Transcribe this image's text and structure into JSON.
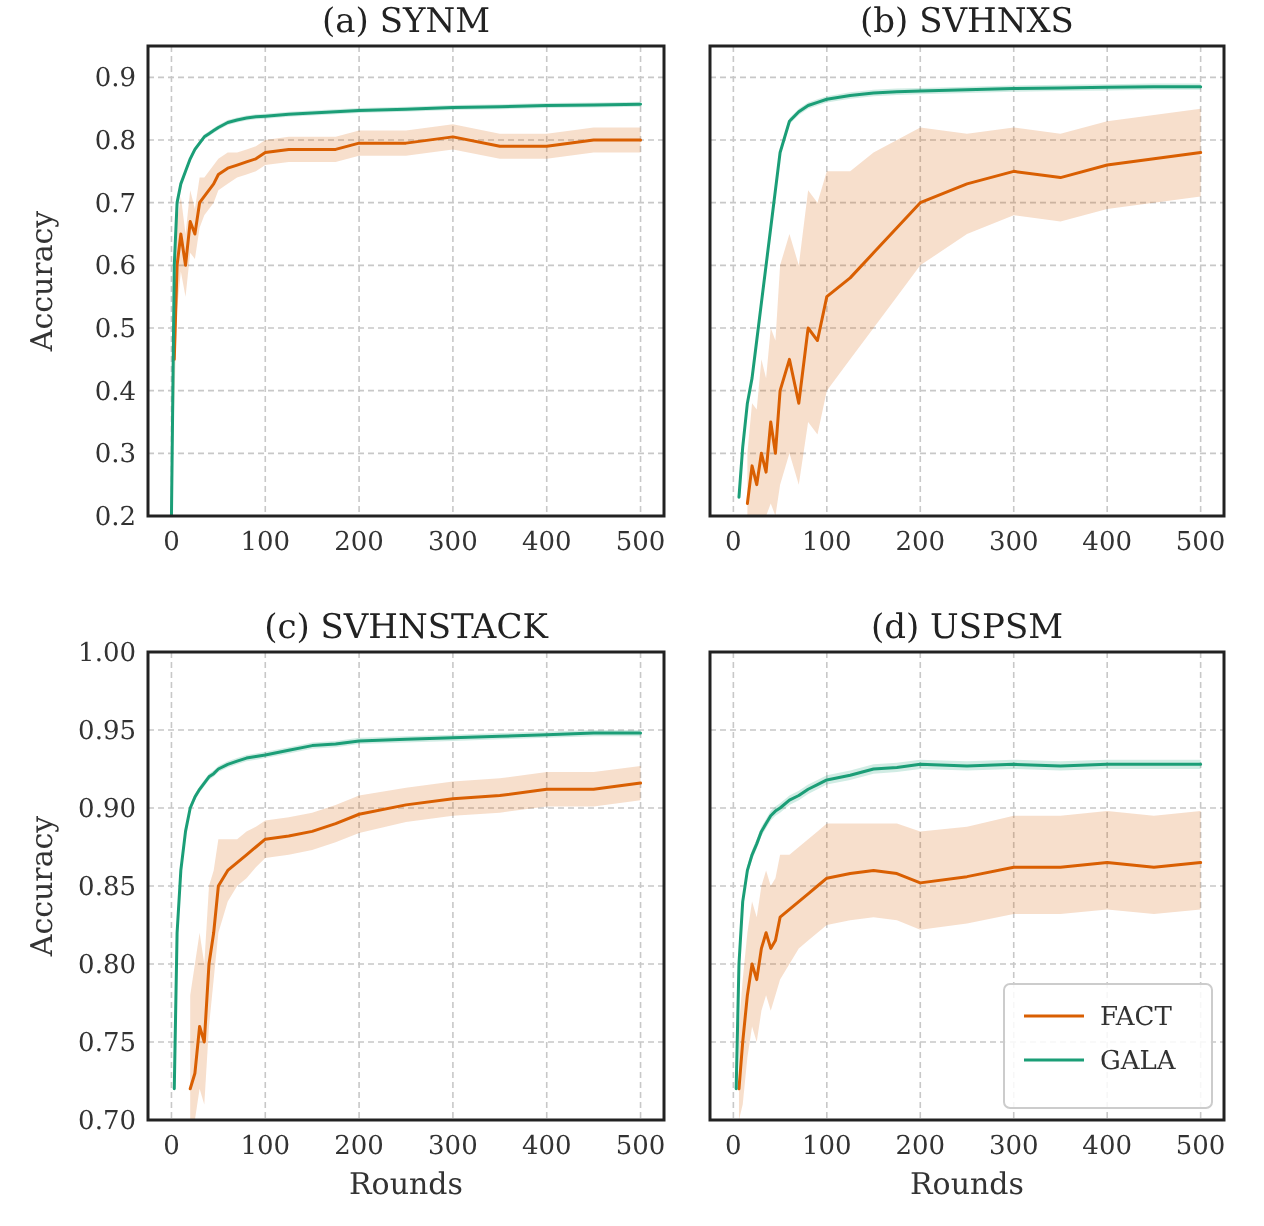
{
  "chart_data": [
    {
      "type": "line",
      "title": "(a) SYNM",
      "ylabel": "Accuracy",
      "grid": true,
      "xlim": [
        -25,
        525
      ],
      "ylim": [
        0.2,
        0.95
      ],
      "xticks": [
        0,
        100,
        200,
        300,
        400,
        500
      ],
      "yticks": [
        0.2,
        0.3,
        0.4,
        0.5,
        0.6,
        0.7,
        0.8,
        0.9
      ],
      "series": [
        {
          "color": "#d95f02",
          "x": [
            0,
            3,
            6,
            10,
            15,
            20,
            25,
            30,
            35,
            40,
            45,
            50,
            60,
            70,
            80,
            90,
            100,
            125,
            150,
            175,
            200,
            250,
            300,
            350,
            400,
            450,
            500
          ],
          "values": [
            null,
            0.45,
            0.6,
            0.65,
            0.6,
            0.67,
            0.65,
            0.7,
            0.71,
            0.72,
            0.73,
            0.745,
            0.755,
            0.76,
            0.765,
            0.77,
            0.78,
            0.785,
            0.785,
            0.785,
            0.795,
            0.795,
            0.805,
            0.79,
            0.79,
            0.8,
            0.8
          ],
          "lower": [
            0.225,
            0.38,
            0.53,
            0.59,
            0.55,
            0.62,
            0.61,
            0.66,
            0.68,
            0.69,
            0.7,
            0.72,
            0.73,
            0.74,
            0.745,
            0.75,
            0.76,
            0.765,
            0.765,
            0.765,
            0.775,
            0.775,
            0.785,
            0.77,
            0.77,
            0.78,
            0.78
          ],
          "upper": [
            0.25,
            0.52,
            0.67,
            0.71,
            0.65,
            0.72,
            0.69,
            0.74,
            0.74,
            0.75,
            0.76,
            0.77,
            0.78,
            0.78,
            0.785,
            0.79,
            0.8,
            0.805,
            0.805,
            0.805,
            0.815,
            0.815,
            0.825,
            0.81,
            0.81,
            0.82,
            0.82
          ]
        },
        {
          "color": "#1b9e77",
          "x": [
            0,
            3,
            6,
            10,
            15,
            20,
            25,
            30,
            35,
            40,
            45,
            50,
            60,
            70,
            80,
            90,
            100,
            125,
            150,
            175,
            200,
            250,
            300,
            350,
            400,
            450,
            500
          ],
          "values": [
            0.2,
            0.6,
            0.7,
            0.73,
            0.75,
            0.77,
            0.785,
            0.795,
            0.805,
            0.81,
            0.815,
            0.82,
            0.828,
            0.832,
            0.835,
            0.837,
            0.838,
            0.841,
            0.843,
            0.845,
            0.847,
            0.849,
            0.852,
            0.853,
            0.855,
            0.856,
            0.857
          ],
          "lower": [
            0.2,
            0.596,
            0.696,
            0.726,
            0.746,
            0.766,
            0.781,
            0.791,
            0.801,
            0.806,
            0.811,
            0.816,
            0.824,
            0.828,
            0.831,
            0.833,
            0.834,
            0.837,
            0.839,
            0.841,
            0.843,
            0.845,
            0.848,
            0.849,
            0.851,
            0.852,
            0.853
          ],
          "upper": [
            0.204,
            0.604,
            0.704,
            0.734,
            0.754,
            0.774,
            0.789,
            0.799,
            0.809,
            0.814,
            0.819,
            0.824,
            0.832,
            0.836,
            0.839,
            0.841,
            0.842,
            0.845,
            0.847,
            0.849,
            0.851,
            0.853,
            0.856,
            0.857,
            0.859,
            0.86,
            0.861
          ]
        }
      ]
    },
    {
      "type": "line",
      "title": "(b) SVHNXS",
      "grid": true,
      "tick_labels": "x",
      "xlim": [
        -25,
        525
      ],
      "ylim": [
        0.2,
        0.95
      ],
      "xticks": [
        0,
        100,
        200,
        300,
        400,
        500
      ],
      "yticks": [
        0.2,
        0.3,
        0.4,
        0.5,
        0.6,
        0.7,
        0.8,
        0.9
      ],
      "series": [
        {
          "color": "#d95f02",
          "x": [
            15,
            20,
            25,
            30,
            35,
            40,
            45,
            50,
            60,
            70,
            80,
            90,
            100,
            125,
            150,
            175,
            200,
            250,
            300,
            350,
            400,
            450,
            500
          ],
          "values": [
            0.22,
            0.28,
            0.25,
            0.3,
            0.27,
            0.35,
            0.3,
            0.4,
            0.45,
            0.38,
            0.5,
            0.48,
            0.55,
            0.58,
            0.62,
            0.66,
            0.7,
            0.73,
            0.75,
            0.74,
            0.76,
            0.77,
            0.78
          ],
          "lower": [
            0.2,
            0.2,
            0.2,
            0.2,
            0.2,
            0.22,
            0.2,
            0.25,
            0.3,
            0.25,
            0.35,
            0.33,
            0.4,
            0.45,
            0.5,
            0.55,
            0.6,
            0.65,
            0.68,
            0.67,
            0.69,
            0.7,
            0.71
          ],
          "upper": [
            0.3,
            0.38,
            0.37,
            0.45,
            0.42,
            0.5,
            0.48,
            0.6,
            0.65,
            0.6,
            0.72,
            0.7,
            0.75,
            0.75,
            0.78,
            0.8,
            0.82,
            0.81,
            0.82,
            0.81,
            0.83,
            0.84,
            0.85
          ]
        },
        {
          "color": "#1b9e77",
          "x": [
            6,
            10,
            15,
            20,
            25,
            30,
            35,
            40,
            45,
            50,
            60,
            70,
            80,
            90,
            100,
            125,
            150,
            175,
            200,
            250,
            300,
            350,
            400,
            450,
            500
          ],
          "values": [
            0.23,
            0.31,
            0.38,
            0.42,
            0.48,
            0.54,
            0.6,
            0.66,
            0.72,
            0.78,
            0.83,
            0.845,
            0.855,
            0.86,
            0.865,
            0.871,
            0.875,
            0.877,
            0.878,
            0.88,
            0.882,
            0.883,
            0.884,
            0.885,
            0.885
          ],
          "lower": [
            0.225,
            0.305,
            0.375,
            0.415,
            0.475,
            0.535,
            0.595,
            0.655,
            0.715,
            0.775,
            0.825,
            0.84,
            0.85,
            0.855,
            0.86,
            0.866,
            0.87,
            0.872,
            0.873,
            0.875,
            0.877,
            0.878,
            0.879,
            0.88,
            0.88
          ],
          "upper": [
            0.235,
            0.315,
            0.385,
            0.425,
            0.485,
            0.545,
            0.605,
            0.665,
            0.725,
            0.785,
            0.835,
            0.85,
            0.86,
            0.865,
            0.87,
            0.876,
            0.88,
            0.882,
            0.883,
            0.885,
            0.887,
            0.888,
            0.889,
            0.89,
            0.89
          ]
        }
      ]
    },
    {
      "type": "line",
      "title": "(c) SVHNSTACK",
      "xlabel": "Rounds",
      "ylabel": "Accuracy",
      "grid": true,
      "xlim": [
        -25,
        525
      ],
      "ylim": [
        0.7,
        1.0
      ],
      "xticks": [
        0,
        100,
        200,
        300,
        400,
        500
      ],
      "yticks": [
        {
          "value": 0.7,
          "label": "0.70"
        },
        {
          "value": 0.75,
          "label": "0.75"
        },
        {
          "value": 0.8,
          "label": "0.80"
        },
        {
          "value": 0.85,
          "label": "0.85"
        },
        {
          "value": 0.9,
          "label": "0.90"
        },
        {
          "value": 0.95,
          "label": "0.95"
        },
        {
          "value": 1.0,
          "label": "1.00"
        }
      ],
      "series": [
        {
          "color": "#d95f02",
          "x": [
            20,
            25,
            30,
            35,
            40,
            45,
            50,
            60,
            70,
            80,
            90,
            100,
            125,
            150,
            175,
            200,
            250,
            300,
            350,
            400,
            450,
            500
          ],
          "values": [
            0.72,
            0.73,
            0.76,
            0.75,
            0.8,
            0.82,
            0.85,
            0.86,
            0.865,
            0.87,
            0.875,
            0.88,
            0.882,
            0.885,
            0.89,
            0.896,
            0.902,
            0.906,
            0.908,
            0.912,
            0.912,
            0.916
          ],
          "lower": [
            0.7,
            0.7,
            0.72,
            0.71,
            0.76,
            0.79,
            0.82,
            0.84,
            0.85,
            0.855,
            0.862,
            0.868,
            0.87,
            0.873,
            0.878,
            0.884,
            0.891,
            0.895,
            0.897,
            0.901,
            0.901,
            0.905
          ],
          "upper": [
            0.78,
            0.8,
            0.82,
            0.8,
            0.85,
            0.86,
            0.88,
            0.88,
            0.88,
            0.885,
            0.888,
            0.892,
            0.894,
            0.897,
            0.902,
            0.908,
            0.913,
            0.917,
            0.919,
            0.923,
            0.923,
            0.927
          ]
        },
        {
          "color": "#1b9e77",
          "x": [
            3,
            6,
            10,
            15,
            20,
            25,
            30,
            35,
            40,
            45,
            50,
            60,
            70,
            80,
            90,
            100,
            125,
            150,
            175,
            200,
            250,
            300,
            350,
            400,
            450,
            500
          ],
          "values": [
            0.72,
            0.82,
            0.86,
            0.885,
            0.9,
            0.907,
            0.912,
            0.916,
            0.92,
            0.922,
            0.925,
            0.928,
            0.93,
            0.932,
            0.933,
            0.934,
            0.937,
            0.94,
            0.941,
            0.943,
            0.944,
            0.945,
            0.946,
            0.947,
            0.948,
            0.948
          ],
          "lower": [
            0.718,
            0.818,
            0.858,
            0.883,
            0.898,
            0.905,
            0.91,
            0.914,
            0.918,
            0.92,
            0.923,
            0.926,
            0.928,
            0.93,
            0.931,
            0.932,
            0.935,
            0.938,
            0.939,
            0.941,
            0.942,
            0.943,
            0.944,
            0.945,
            0.946,
            0.946
          ],
          "upper": [
            0.722,
            0.822,
            0.862,
            0.887,
            0.902,
            0.909,
            0.914,
            0.918,
            0.922,
            0.924,
            0.927,
            0.93,
            0.932,
            0.934,
            0.935,
            0.936,
            0.939,
            0.942,
            0.943,
            0.945,
            0.946,
            0.947,
            0.948,
            0.949,
            0.95,
            0.95
          ]
        }
      ]
    },
    {
      "type": "line",
      "title": "(d) USPSM",
      "xlabel": "Rounds",
      "grid": true,
      "legend": "bottom right",
      "tick_labels": "x",
      "xlim": [
        -25,
        525
      ],
      "ylim": [
        0.7,
        1.0
      ],
      "xticks": [
        0,
        100,
        200,
        300,
        400,
        500
      ],
      "yticks": [
        0.7,
        0.75,
        0.8,
        0.85,
        0.9,
        0.95,
        1.0
      ],
      "series": [
        {
          "name": "FACT",
          "color": "#d95f02",
          "x": [
            6,
            10,
            15,
            20,
            25,
            30,
            35,
            40,
            45,
            50,
            60,
            70,
            80,
            90,
            100,
            125,
            150,
            175,
            200,
            250,
            300,
            350,
            400,
            450,
            500
          ],
          "values": [
            0.72,
            0.75,
            0.78,
            0.8,
            0.79,
            0.81,
            0.82,
            0.81,
            0.815,
            0.83,
            0.835,
            0.84,
            0.845,
            0.85,
            0.855,
            0.858,
            0.86,
            0.858,
            0.852,
            0.856,
            0.862,
            0.862,
            0.865,
            0.862,
            0.865
          ],
          "lower": [
            0.7,
            0.71,
            0.74,
            0.76,
            0.75,
            0.77,
            0.78,
            0.77,
            0.78,
            0.79,
            0.8,
            0.81,
            0.815,
            0.82,
            0.825,
            0.828,
            0.83,
            0.828,
            0.822,
            0.826,
            0.832,
            0.832,
            0.835,
            0.832,
            0.835
          ],
          "upper": [
            0.76,
            0.79,
            0.82,
            0.84,
            0.83,
            0.85,
            0.86,
            0.85,
            0.855,
            0.87,
            0.87,
            0.875,
            0.88,
            0.885,
            0.89,
            0.89,
            0.89,
            0.89,
            0.885,
            0.888,
            0.895,
            0.895,
            0.898,
            0.895,
            0.898
          ]
        },
        {
          "name": "GALA",
          "color": "#1b9e77",
          "x": [
            3,
            6,
            10,
            15,
            20,
            25,
            30,
            35,
            40,
            45,
            50,
            60,
            70,
            80,
            90,
            100,
            125,
            150,
            175,
            200,
            250,
            300,
            350,
            400,
            450,
            500
          ],
          "values": [
            0.72,
            0.8,
            0.84,
            0.86,
            0.87,
            0.877,
            0.885,
            0.89,
            0.895,
            0.898,
            0.9,
            0.905,
            0.908,
            0.912,
            0.915,
            0.918,
            0.921,
            0.925,
            0.926,
            0.928,
            0.927,
            0.928,
            0.927,
            0.928,
            0.928,
            0.928
          ],
          "lower": [
            0.717,
            0.797,
            0.837,
            0.857,
            0.867,
            0.874,
            0.882,
            0.887,
            0.892,
            0.895,
            0.897,
            0.902,
            0.905,
            0.909,
            0.912,
            0.915,
            0.918,
            0.922,
            0.923,
            0.925,
            0.924,
            0.925,
            0.924,
            0.925,
            0.925,
            0.925
          ],
          "upper": [
            0.723,
            0.803,
            0.843,
            0.863,
            0.873,
            0.88,
            0.888,
            0.893,
            0.898,
            0.901,
            0.903,
            0.908,
            0.911,
            0.915,
            0.918,
            0.921,
            0.924,
            0.928,
            0.929,
            0.931,
            0.93,
            0.931,
            0.93,
            0.931,
            0.931,
            0.931
          ]
        }
      ]
    }
  ]
}
